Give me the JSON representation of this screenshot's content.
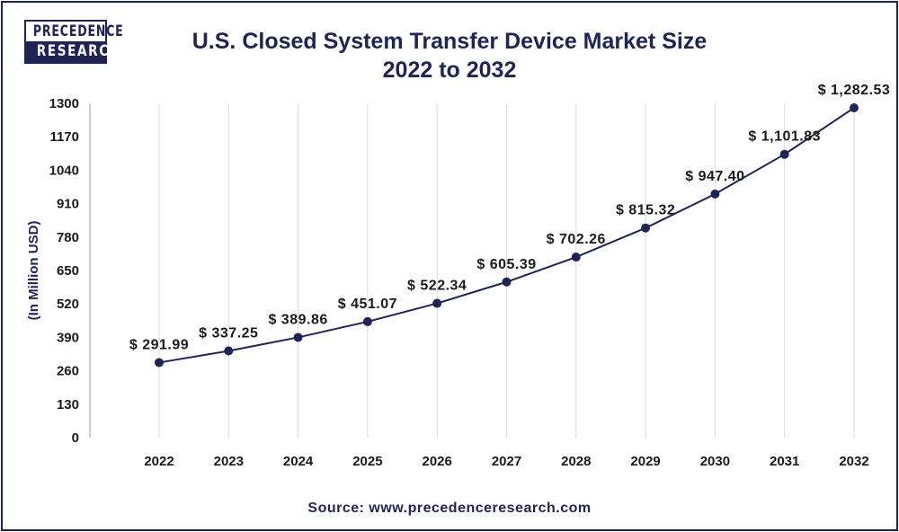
{
  "logo": {
    "line1": "PRECEDENCE",
    "line2": "RESEARCH"
  },
  "chart_data": {
    "type": "line",
    "title": [
      "U.S. Closed System Transfer Device Market Size",
      "2022 to 2032"
    ],
    "xlabel": "",
    "ylabel": "(In Million USD)",
    "categories": [
      "2022",
      "2023",
      "2024",
      "2025",
      "2026",
      "2027",
      "2028",
      "2029",
      "2030",
      "2031",
      "2032"
    ],
    "values": [
      291.99,
      337.25,
      389.86,
      451.07,
      522.34,
      605.39,
      702.26,
      815.32,
      947.4,
      1101.83,
      1282.53
    ],
    "data_labels": [
      "$ 291.99",
      "$ 337.25",
      "$ 389.86",
      "$ 451.07",
      "$ 522.34",
      "$ 605.39",
      "$ 702.26",
      "$ 815.32",
      "$ 947.40",
      "$ 1,101.83",
      "$ 1,282.53"
    ],
    "yticks": [
      0,
      130,
      260,
      390,
      520,
      650,
      780,
      910,
      1040,
      1170,
      1300
    ],
    "ylim": [
      0,
      1300
    ],
    "grid": "vertical",
    "color": "#1f2456"
  },
  "source": "Source: www.precedenceresearch.com"
}
